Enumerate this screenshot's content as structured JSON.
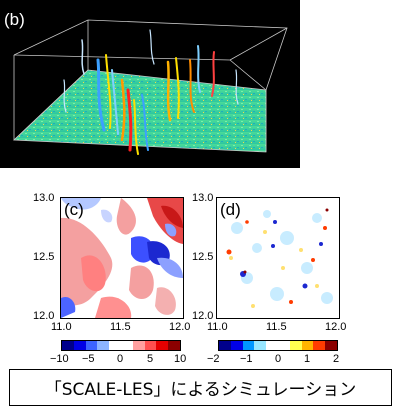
{
  "panel_b": {
    "label": "(b)"
  },
  "panel_c": {
    "label": "(c)",
    "x_ticks": [
      "11.0",
      "11.5",
      "12.0"
    ],
    "y_ticks": [
      "13.0",
      "12.5",
      "12.0"
    ],
    "colorbar_ticks": [
      "−10",
      "−5",
      "0",
      "5",
      "10"
    ],
    "colorbar_colors": [
      "#00008b",
      "#0000e6",
      "#3c64ff",
      "#8cb4ff",
      "#ffffff",
      "#ffffff",
      "#ffa0a0",
      "#ff5050",
      "#e60000",
      "#8b0000"
    ]
  },
  "panel_d": {
    "label": "(d)",
    "x_ticks": [
      "11.0",
      "11.5",
      "12.0"
    ],
    "colorbar_ticks": [
      "−2",
      "−1",
      "0",
      "1",
      "2"
    ],
    "colorbar_colors": [
      "#00008b",
      "#0000e6",
      "#0096ff",
      "#96e6ff",
      "#ffffff",
      "#ffffff",
      "#ffff50",
      "#ffb400",
      "#ff3c00",
      "#8b0000"
    ]
  },
  "caption": "「SCALE-LES」によるシミュレーション"
}
